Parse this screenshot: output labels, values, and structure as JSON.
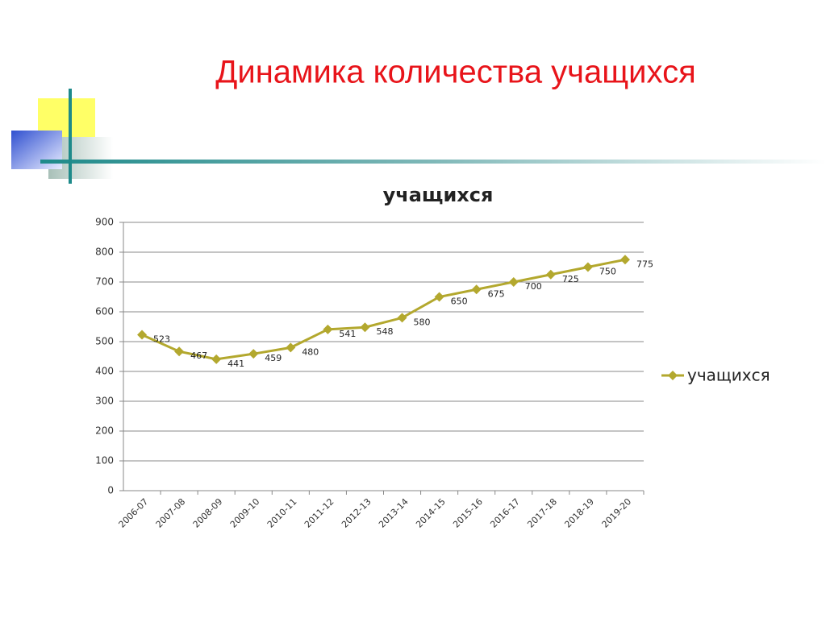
{
  "slide_title": "Динамика количества учащихся",
  "chart_data": {
    "type": "line",
    "title": "учащихся",
    "categories": [
      "2006-07",
      "2007-08",
      "2008-09",
      "2009-10",
      "2010-11",
      "2011-12",
      "2012-13",
      "2013-14",
      "2014-15",
      "2015-16",
      "2016-17",
      "2017-18",
      "2018-19",
      "2019-20"
    ],
    "series": [
      {
        "name": "учащихся",
        "color": "#b3a82e",
        "values": [
          523,
          467,
          441,
          459,
          480,
          541,
          548,
          580,
          650,
          675,
          700,
          725,
          750,
          775
        ]
      }
    ],
    "ylim": [
      0,
      900
    ],
    "yticks": [
      0,
      100,
      200,
      300,
      400,
      500,
      600,
      700,
      800,
      900
    ],
    "grid": true,
    "legend": "right",
    "data_labels": true
  }
}
